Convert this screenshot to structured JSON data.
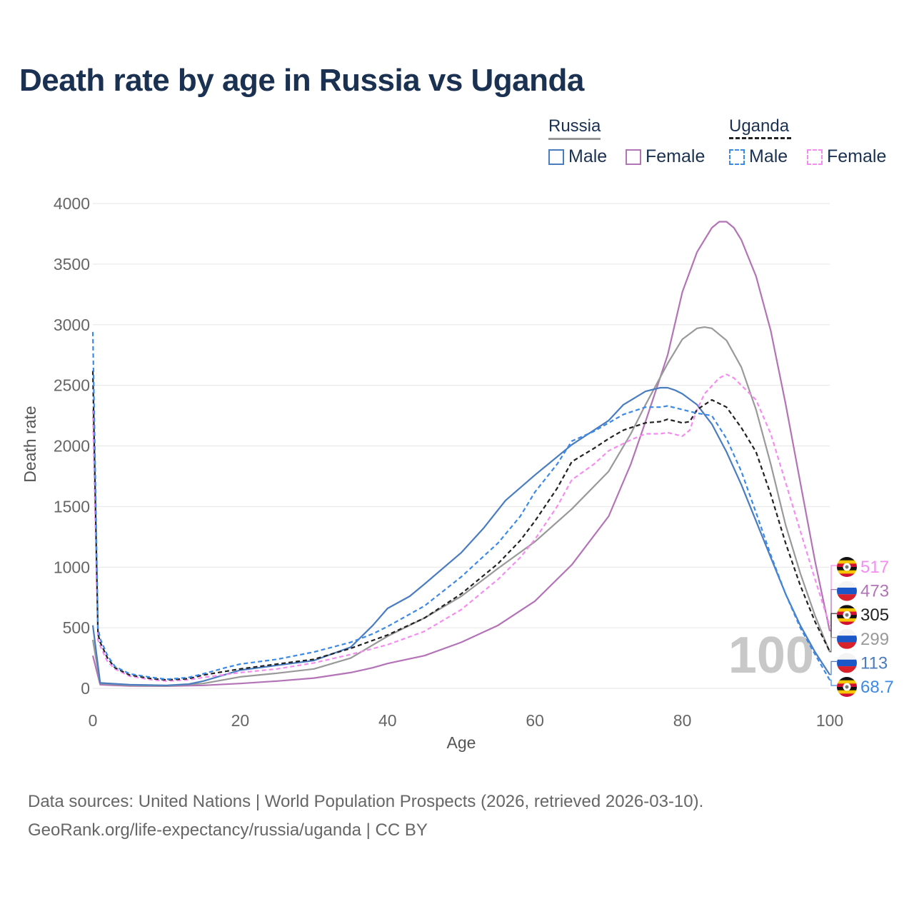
{
  "title": "Death rate by age in Russia vs Uganda",
  "legend": {
    "groups": [
      {
        "name": "Russia",
        "line_color": "#999999",
        "dashed": false
      },
      {
        "name": "Uganda",
        "line_color": "#222222",
        "dashed": true
      }
    ],
    "items": [
      {
        "label": "Male",
        "color": "#4a7cc0",
        "dashed": false
      },
      {
        "label": "Female",
        "color": "#b373b7",
        "dashed": false
      },
      {
        "label": "Male",
        "color": "#3c8ae6",
        "dashed": true
      },
      {
        "label": "Female",
        "color": "#f58cf0",
        "dashed": true
      }
    ]
  },
  "footer": {
    "line1": "Data sources: United Nations | World Population Prospects (2026, retrieved 2026-03-10).",
    "line2": "GeoRank.org/life-expectancy/russia/uganda | CC BY"
  },
  "chart_data": {
    "type": "line",
    "title": "Death rate by age in Russia vs Uganda",
    "xlabel": "Age",
    "ylabel": "Death rate",
    "xlim": [
      0,
      100
    ],
    "ylim": [
      0,
      4000
    ],
    "x_ticks": [
      0,
      20,
      40,
      60,
      80,
      100
    ],
    "y_ticks": [
      0,
      500,
      1000,
      1500,
      2000,
      2500,
      3000,
      3500,
      4000
    ],
    "grid": true,
    "current_age_label": "100",
    "series": [
      {
        "name": "Russia Female",
        "color": "#b373b7",
        "dashed": false,
        "end_label": "473",
        "points": [
          [
            0,
            270
          ],
          [
            1,
            30
          ],
          [
            5,
            20
          ],
          [
            10,
            18
          ],
          [
            15,
            25
          ],
          [
            20,
            40
          ],
          [
            25,
            60
          ],
          [
            30,
            85
          ],
          [
            35,
            130
          ],
          [
            38,
            170
          ],
          [
            40,
            205
          ],
          [
            45,
            270
          ],
          [
            50,
            380
          ],
          [
            55,
            520
          ],
          [
            60,
            720
          ],
          [
            65,
            1020
          ],
          [
            70,
            1420
          ],
          [
            73,
            1850
          ],
          [
            75,
            2200
          ],
          [
            78,
            2750
          ],
          [
            80,
            3270
          ],
          [
            82,
            3600
          ],
          [
            84,
            3800
          ],
          [
            85,
            3850
          ],
          [
            86,
            3850
          ],
          [
            87,
            3800
          ],
          [
            88,
            3700
          ],
          [
            90,
            3400
          ],
          [
            92,
            2950
          ],
          [
            94,
            2350
          ],
          [
            96,
            1700
          ],
          [
            98,
            1050
          ],
          [
            100,
            473
          ]
        ]
      },
      {
        "name": "Russia Both",
        "color": "#999999",
        "dashed": false,
        "end_label": "299",
        "points": [
          [
            0,
            400
          ],
          [
            1,
            40
          ],
          [
            5,
            25
          ],
          [
            10,
            20
          ],
          [
            15,
            40
          ],
          [
            20,
            95
          ],
          [
            25,
            125
          ],
          [
            30,
            160
          ],
          [
            35,
            250
          ],
          [
            40,
            430
          ],
          [
            45,
            580
          ],
          [
            50,
            760
          ],
          [
            55,
            990
          ],
          [
            60,
            1210
          ],
          [
            65,
            1480
          ],
          [
            70,
            1790
          ],
          [
            73,
            2100
          ],
          [
            75,
            2340
          ],
          [
            78,
            2680
          ],
          [
            80,
            2880
          ],
          [
            82,
            2970
          ],
          [
            83,
            2980
          ],
          [
            84,
            2970
          ],
          [
            86,
            2870
          ],
          [
            88,
            2650
          ],
          [
            90,
            2300
          ],
          [
            92,
            1850
          ],
          [
            94,
            1350
          ],
          [
            96,
            950
          ],
          [
            98,
            600
          ],
          [
            100,
            299
          ]
        ]
      },
      {
        "name": "Russia Male",
        "color": "#4a7cc0",
        "dashed": false,
        "end_label": "113",
        "points": [
          [
            0,
            520
          ],
          [
            1,
            45
          ],
          [
            5,
            30
          ],
          [
            10,
            25
          ],
          [
            13,
            35
          ],
          [
            15,
            60
          ],
          [
            20,
            150
          ],
          [
            25,
            190
          ],
          [
            30,
            230
          ],
          [
            35,
            340
          ],
          [
            38,
            520
          ],
          [
            40,
            660
          ],
          [
            43,
            760
          ],
          [
            45,
            860
          ],
          [
            50,
            1120
          ],
          [
            53,
            1320
          ],
          [
            56,
            1550
          ],
          [
            60,
            1760
          ],
          [
            65,
            2010
          ],
          [
            70,
            2210
          ],
          [
            72,
            2340
          ],
          [
            75,
            2450
          ],
          [
            77,
            2480
          ],
          [
            78,
            2480
          ],
          [
            79,
            2460
          ],
          [
            80,
            2430
          ],
          [
            82,
            2340
          ],
          [
            84,
            2180
          ],
          [
            86,
            1950
          ],
          [
            88,
            1680
          ],
          [
            90,
            1380
          ],
          [
            92,
            1080
          ],
          [
            94,
            780
          ],
          [
            96,
            520
          ],
          [
            98,
            300
          ],
          [
            100,
            113
          ]
        ]
      },
      {
        "name": "Uganda Female",
        "color": "#f58cf0",
        "dashed": true,
        "end_label": "517",
        "points": [
          [
            0,
            2300
          ],
          [
            0.7,
            400
          ],
          [
            1,
            350
          ],
          [
            2,
            220
          ],
          [
            3,
            160
          ],
          [
            5,
            100
          ],
          [
            8,
            70
          ],
          [
            10,
            60
          ],
          [
            13,
            70
          ],
          [
            15,
            90
          ],
          [
            20,
            130
          ],
          [
            25,
            160
          ],
          [
            30,
            210
          ],
          [
            35,
            280
          ],
          [
            40,
            360
          ],
          [
            45,
            470
          ],
          [
            50,
            650
          ],
          [
            55,
            900
          ],
          [
            58,
            1080
          ],
          [
            60,
            1230
          ],
          [
            63,
            1500
          ],
          [
            65,
            1720
          ],
          [
            68,
            1850
          ],
          [
            70,
            1960
          ],
          [
            73,
            2050
          ],
          [
            75,
            2100
          ],
          [
            77,
            2100
          ],
          [
            78,
            2110
          ],
          [
            80,
            2080
          ],
          [
            81,
            2130
          ],
          [
            82,
            2300
          ],
          [
            83,
            2430
          ],
          [
            85,
            2560
          ],
          [
            86,
            2590
          ],
          [
            87,
            2560
          ],
          [
            88,
            2500
          ],
          [
            90,
            2380
          ],
          [
            92,
            2100
          ],
          [
            94,
            1700
          ],
          [
            96,
            1300
          ],
          [
            98,
            900
          ],
          [
            100,
            517
          ]
        ]
      },
      {
        "name": "Uganda Both",
        "color": "#222222",
        "dashed": true,
        "end_label": "305",
        "points": [
          [
            0,
            2620
          ],
          [
            0.7,
            450
          ],
          [
            1,
            380
          ],
          [
            2,
            250
          ],
          [
            3,
            170
          ],
          [
            5,
            110
          ],
          [
            8,
            80
          ],
          [
            10,
            70
          ],
          [
            13,
            80
          ],
          [
            15,
            110
          ],
          [
            20,
            160
          ],
          [
            25,
            200
          ],
          [
            30,
            240
          ],
          [
            35,
            330
          ],
          [
            40,
            440
          ],
          [
            45,
            580
          ],
          [
            50,
            780
          ],
          [
            55,
            1030
          ],
          [
            58,
            1220
          ],
          [
            60,
            1380
          ],
          [
            63,
            1650
          ],
          [
            65,
            1870
          ],
          [
            68,
            1980
          ],
          [
            70,
            2060
          ],
          [
            72,
            2130
          ],
          [
            75,
            2190
          ],
          [
            77,
            2200
          ],
          [
            78,
            2220
          ],
          [
            80,
            2190
          ],
          [
            81,
            2200
          ],
          [
            82,
            2300
          ],
          [
            84,
            2380
          ],
          [
            86,
            2320
          ],
          [
            88,
            2150
          ],
          [
            90,
            1950
          ],
          [
            92,
            1600
          ],
          [
            94,
            1200
          ],
          [
            96,
            850
          ],
          [
            98,
            550
          ],
          [
            100,
            305
          ]
        ]
      },
      {
        "name": "Uganda Male",
        "color": "#3c8ae6",
        "dashed": true,
        "end_label": "68.7",
        "points": [
          [
            0,
            2940
          ],
          [
            0.7,
            500
          ],
          [
            1,
            410
          ],
          [
            2,
            270
          ],
          [
            3,
            180
          ],
          [
            5,
            120
          ],
          [
            8,
            90
          ],
          [
            10,
            75
          ],
          [
            13,
            90
          ],
          [
            15,
            120
          ],
          [
            18,
            170
          ],
          [
            20,
            200
          ],
          [
            25,
            240
          ],
          [
            30,
            300
          ],
          [
            35,
            380
          ],
          [
            38,
            450
          ],
          [
            40,
            510
          ],
          [
            45,
            680
          ],
          [
            50,
            920
          ],
          [
            55,
            1200
          ],
          [
            58,
            1420
          ],
          [
            60,
            1620
          ],
          [
            63,
            1850
          ],
          [
            65,
            2040
          ],
          [
            68,
            2120
          ],
          [
            70,
            2190
          ],
          [
            72,
            2260
          ],
          [
            75,
            2320
          ],
          [
            77,
            2320
          ],
          [
            78,
            2330
          ],
          [
            80,
            2300
          ],
          [
            82,
            2270
          ],
          [
            84,
            2250
          ],
          [
            86,
            2060
          ],
          [
            88,
            1790
          ],
          [
            90,
            1450
          ],
          [
            92,
            1100
          ],
          [
            94,
            780
          ],
          [
            96,
            500
          ],
          [
            98,
            280
          ],
          [
            100,
            68.7
          ]
        ]
      }
    ]
  }
}
